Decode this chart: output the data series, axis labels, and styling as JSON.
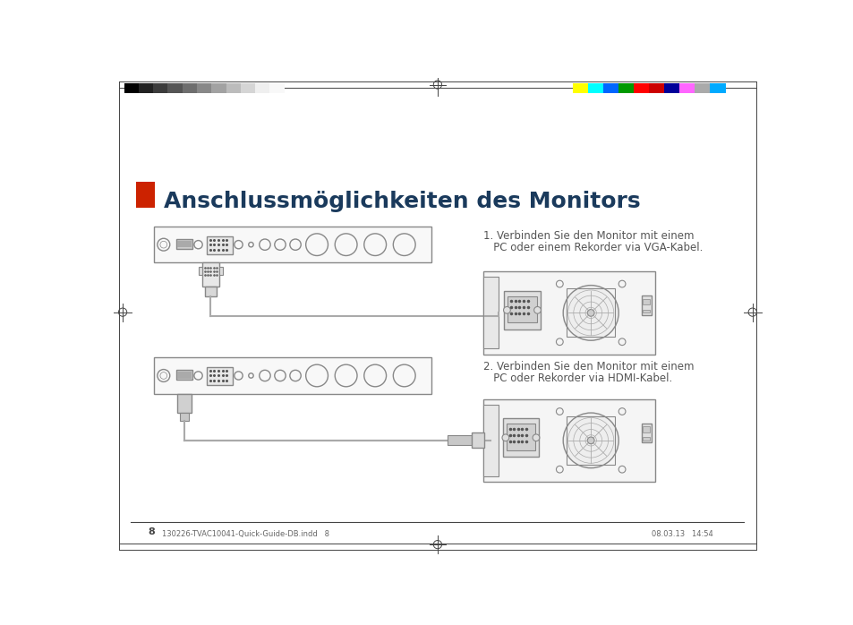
{
  "title": "Anschlussmöglichkeiten des Monitors",
  "title_color": "#1a3a5c",
  "title_fontsize": 18,
  "bg_color": "#ffffff",
  "red_rect_color": "#cc2200",
  "section1_text_line1": "1. Verbinden Sie den Monitor mit einem",
  "section1_text_line2": "   PC oder einem Rekorder via VGA-Kabel.",
  "section2_text_line1": "2. Verbinden Sie den Monitor mit einem",
  "section2_text_line2": "   PC oder Rekorder via HDMI-Kabel.",
  "text_color": "#555555",
  "text_fontsize": 8.5,
  "grayscale_colors": [
    "#000000",
    "#222222",
    "#3c3c3c",
    "#555555",
    "#6e6e6e",
    "#888888",
    "#a2a2a2",
    "#bcbcbc",
    "#d5d5d5",
    "#efefef",
    "#f8f8f8"
  ],
  "color_bars": [
    "#ffff00",
    "#00ffff",
    "#0066ff",
    "#009900",
    "#ff0000",
    "#cc0000",
    "#000099",
    "#ff66ff",
    "#aaaaaa",
    "#00aaff"
  ],
  "footer_left": "130226-TVAC10041-Quick-Guide-DB.indd   8",
  "footer_right": "08.03.13   14:54",
  "page_number": "8",
  "panel_fc": "#f8f8f8",
  "panel_ec": "#888888",
  "rec_fc": "#f0f0f0",
  "rec_ec": "#888888",
  "cable_color": "#aaaaaa",
  "connector_fc": "#dddddd",
  "connector_ec": "#888888"
}
